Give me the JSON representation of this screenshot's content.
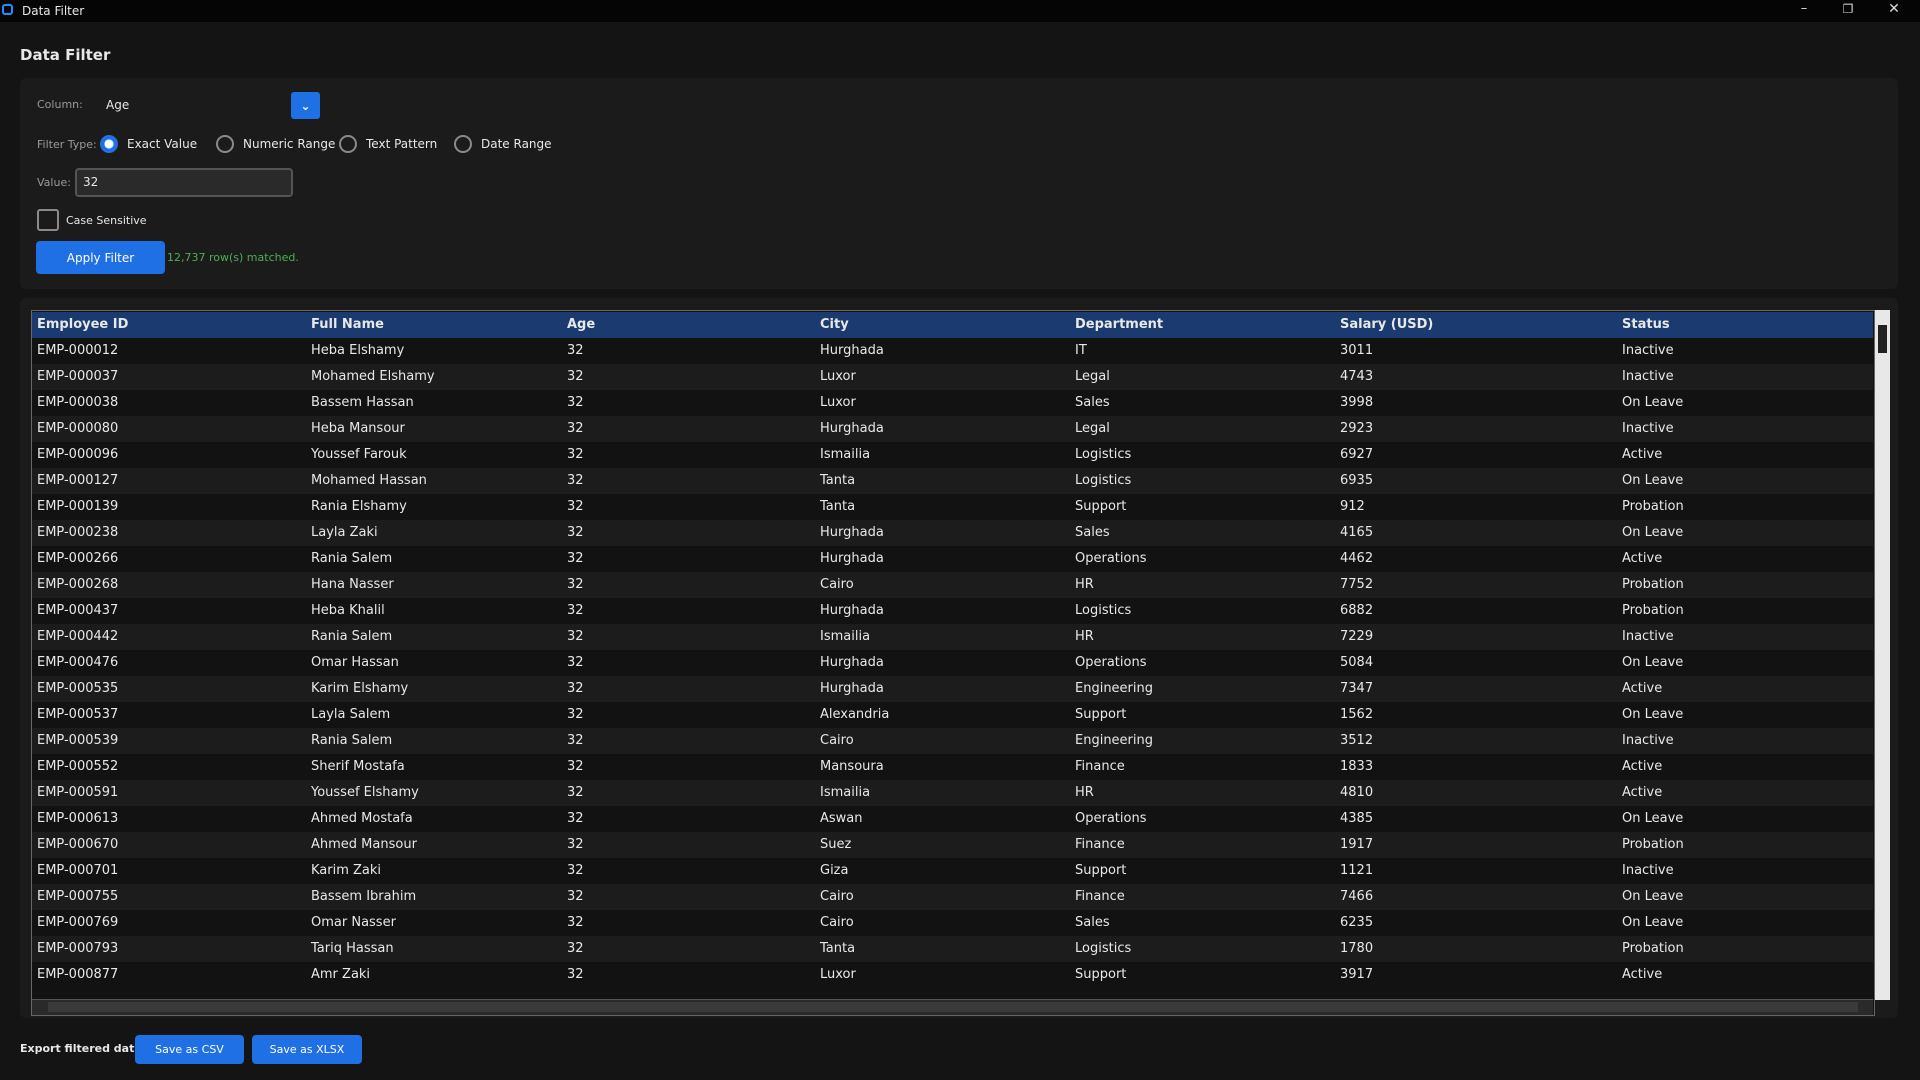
{
  "window": {
    "title": "Data Filter"
  },
  "header": {
    "title": "Data Filter"
  },
  "filter": {
    "column_label": "Column:",
    "column_value": "Age",
    "filter_type_label": "Filter Type:",
    "options": [
      {
        "label": "Exact Value",
        "selected": true
      },
      {
        "label": "Numeric Range",
        "selected": false
      },
      {
        "label": "Text Pattern",
        "selected": false
      },
      {
        "label": "Date Range",
        "selected": false
      }
    ],
    "value_label": "Value:",
    "value": "32",
    "case_sensitive": {
      "label": "Case Sensitive",
      "checked": false
    },
    "apply_button": "Apply Filter",
    "status": "12,737 row(s) matched."
  },
  "table": {
    "columns": [
      "Employee ID",
      "Full Name",
      "Age",
      "City",
      "Department",
      "Salary (USD)",
      "Status"
    ],
    "rows": [
      [
        "EMP-000012",
        "Heba Elshamy",
        32,
        "Hurghada",
        "IT",
        3011,
        "Inactive"
      ],
      [
        "EMP-000037",
        "Mohamed Elshamy",
        32,
        "Luxor",
        "Legal",
        4743,
        "Inactive"
      ],
      [
        "EMP-000038",
        "Bassem Hassan",
        32,
        "Luxor",
        "Sales",
        3998,
        "On Leave"
      ],
      [
        "EMP-000080",
        "Heba Mansour",
        32,
        "Hurghada",
        "Legal",
        2923,
        "Inactive"
      ],
      [
        "EMP-000096",
        "Youssef Farouk",
        32,
        "Ismailia",
        "Logistics",
        6927,
        "Active"
      ],
      [
        "EMP-000127",
        "Mohamed Hassan",
        32,
        "Tanta",
        "Logistics",
        6935,
        "On Leave"
      ],
      [
        "EMP-000139",
        "Rania Elshamy",
        32,
        "Tanta",
        "Support",
        912,
        "Probation"
      ],
      [
        "EMP-000238",
        "Layla Zaki",
        32,
        "Hurghada",
        "Sales",
        4165,
        "On Leave"
      ],
      [
        "EMP-000266",
        "Rania Salem",
        32,
        "Hurghada",
        "Operations",
        4462,
        "Active"
      ],
      [
        "EMP-000268",
        "Hana Nasser",
        32,
        "Cairo",
        "HR",
        7752,
        "Probation"
      ],
      [
        "EMP-000437",
        "Heba Khalil",
        32,
        "Hurghada",
        "Logistics",
        6882,
        "Probation"
      ],
      [
        "EMP-000442",
        "Rania Salem",
        32,
        "Ismailia",
        "HR",
        7229,
        "Inactive"
      ],
      [
        "EMP-000476",
        "Omar Hassan",
        32,
        "Hurghada",
        "Operations",
        5084,
        "On Leave"
      ],
      [
        "EMP-000535",
        "Karim Elshamy",
        32,
        "Hurghada",
        "Engineering",
        7347,
        "Active"
      ],
      [
        "EMP-000537",
        "Layla Salem",
        32,
        "Alexandria",
        "Support",
        1562,
        "On Leave"
      ],
      [
        "EMP-000539",
        "Rania Salem",
        32,
        "Cairo",
        "Engineering",
        3512,
        "Inactive"
      ],
      [
        "EMP-000552",
        "Sherif Mostafa",
        32,
        "Mansoura",
        "Finance",
        1833,
        "Active"
      ],
      [
        "EMP-000591",
        "Youssef Elshamy",
        32,
        "Ismailia",
        "HR",
        4810,
        "Active"
      ],
      [
        "EMP-000613",
        "Ahmed Mostafa",
        32,
        "Aswan",
        "Operations",
        4385,
        "On Leave"
      ],
      [
        "EMP-000670",
        "Ahmed Mansour",
        32,
        "Suez",
        "Finance",
        1917,
        "Probation"
      ],
      [
        "EMP-000701",
        "Karim Zaki",
        32,
        "Giza",
        "Support",
        1121,
        "Inactive"
      ],
      [
        "EMP-000755",
        "Bassem Ibrahim",
        32,
        "Cairo",
        "Finance",
        7466,
        "On Leave"
      ],
      [
        "EMP-000769",
        "Omar Nasser",
        32,
        "Cairo",
        "Sales",
        6235,
        "On Leave"
      ],
      [
        "EMP-000793",
        "Tariq Hassan",
        32,
        "Tanta",
        "Logistics",
        1780,
        "Probation"
      ],
      [
        "EMP-000877",
        "Amr Zaki",
        32,
        "Luxor",
        "Support",
        3917,
        "Active"
      ]
    ]
  },
  "footer": {
    "label": "Export filtered data:",
    "buttons": [
      "Save as CSV",
      "Save as XLSX"
    ]
  }
}
